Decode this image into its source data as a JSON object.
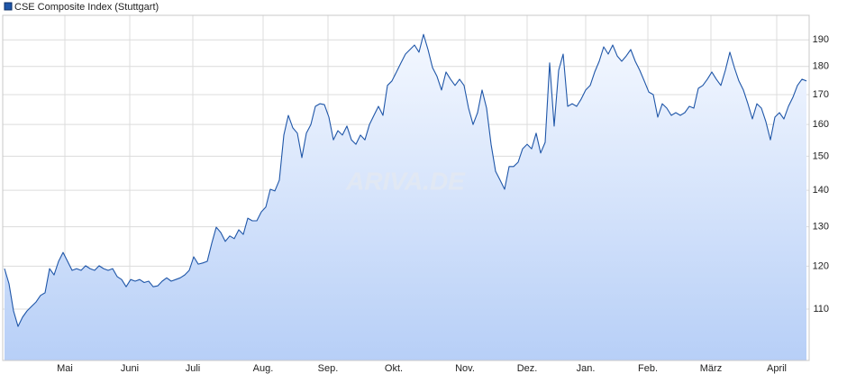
{
  "chart_data": {
    "type": "area",
    "title": "CSE Composite Index (Stuttgart)",
    "watermark": "ARIVA.DE",
    "color": "#1f56a8",
    "log_scale": true,
    "grid": true,
    "values": [
      119.4,
      115.8,
      109.6,
      106.2,
      108.2,
      109.6,
      110.6,
      111.6,
      113.1,
      113.7,
      119.4,
      117.9,
      121.2,
      123.4,
      121.2,
      119.0,
      119.4,
      119.0,
      120.1,
      119.4,
      119.0,
      120.1,
      119.4,
      119.0,
      119.4,
      117.5,
      116.8,
      115.1,
      116.8,
      116.4,
      116.8,
      116.1,
      116.4,
      115.1,
      115.3,
      116.4,
      117.2,
      116.4,
      116.8,
      117.2,
      117.9,
      119.0,
      122.3,
      120.5,
      120.8,
      121.2,
      125.7,
      129.9,
      128.5,
      126.2,
      127.6,
      126.9,
      129.2,
      128.0,
      132.3,
      131.6,
      131.6,
      134.0,
      135.3,
      140.3,
      139.8,
      142.9,
      156.6,
      163.0,
      158.9,
      157.2,
      149.6,
      157.2,
      160.0,
      166.0,
      166.9,
      166.6,
      162.4,
      155.1,
      158.0,
      156.6,
      159.5,
      155.1,
      153.7,
      156.6,
      155.1,
      160.0,
      163.0,
      166.0,
      163.0,
      173.2,
      174.8,
      178.0,
      181.3,
      184.6,
      186.3,
      188.0,
      185.3,
      192.1,
      186.3,
      179.6,
      176.4,
      171.6,
      178.0,
      175.4,
      173.2,
      175.4,
      173.2,
      165.4,
      160.0,
      163.9,
      171.6,
      165.4,
      153.7,
      145.5,
      142.9,
      140.3,
      146.9,
      146.9,
      148.2,
      152.3,
      153.7,
      152.3,
      157.2,
      151.0,
      154.3,
      181.3,
      159.5,
      178.6,
      184.6,
      166.0,
      166.9,
      166.0,
      168.5,
      171.6,
      173.2,
      178.0,
      181.9,
      187.3,
      184.6,
      188.0,
      183.9,
      181.9,
      183.9,
      186.3,
      181.9,
      178.6,
      174.8,
      170.9,
      170.0,
      162.4,
      166.9,
      165.4,
      163.0,
      163.9,
      163.0,
      163.9,
      166.0,
      165.4,
      172.2,
      173.2,
      175.4,
      178.0,
      175.4,
      173.2,
      178.6,
      185.3,
      179.6,
      174.8,
      171.6,
      166.9,
      161.8,
      166.9,
      165.4,
      160.9,
      155.1,
      162.4,
      163.9,
      161.8,
      166.0,
      169.1,
      173.2,
      175.4,
      174.8
    ],
    "xlim": [
      0,
      178
    ],
    "xticks": [
      {
        "value": 13.4,
        "label": "Mai"
      },
      {
        "value": 27.8,
        "label": "Juni"
      },
      {
        "value": 41.8,
        "label": "Juli"
      },
      {
        "value": 57.4,
        "label": "Aug."
      },
      {
        "value": 71.8,
        "label": "Sep."
      },
      {
        "value": 86.4,
        "label": "Okt."
      },
      {
        "value": 102.2,
        "label": "Nov."
      },
      {
        "value": 116,
        "label": "Dez."
      },
      {
        "value": 129,
        "label": "Jan."
      },
      {
        "value": 142.8,
        "label": "Feb."
      },
      {
        "value": 156.8,
        "label": "März"
      },
      {
        "value": 171.4,
        "label": "April"
      }
    ],
    "ylim": [
      99.1,
      199.7
    ],
    "yticks": [
      110,
      120,
      130,
      140,
      150,
      160,
      170,
      180,
      190
    ]
  }
}
